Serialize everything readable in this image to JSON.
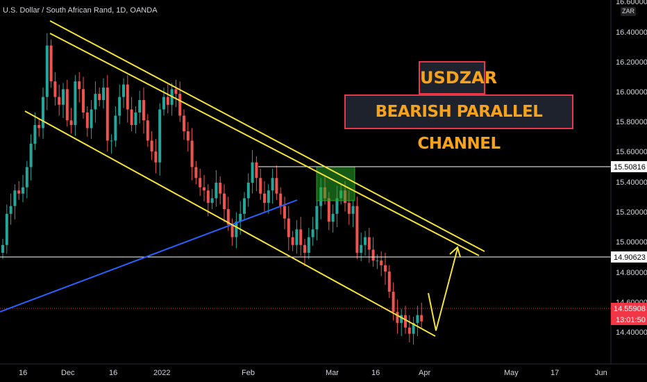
{
  "header": {
    "symbol_title": "U.S. Dollar / South African Rand, 1D, OANDA",
    "currency_badge": "ZAR"
  },
  "annotations": {
    "title": "USDZAR",
    "subtitle": "BEARISH PARALLEL CHANNEL"
  },
  "price_labels": {
    "resistance": "15.50816",
    "support": "14.90623",
    "last_price": "14.55908",
    "countdown": "13:01:50"
  },
  "colors": {
    "background": "#000000",
    "bull_candle": "#26a69a",
    "bear_candle": "#ef5350",
    "channel": "#f5e33b",
    "trendline": "#2962ff",
    "annotation_text": "#f7a21b",
    "annotation_border": "#e8364a",
    "last_price_tag": "#f23645"
  },
  "chart_data": {
    "type": "candlestick",
    "title": "U.S. Dollar / South African Rand, 1D, OANDA",
    "x_tick_labels": [
      "16",
      "Dec",
      "16",
      "2022",
      "Feb",
      "Mar",
      "16",
      "Apr",
      "May",
      "17",
      "Jun"
    ],
    "y_tick_labels": [
      "16.60000",
      "16.40000",
      "16.20000",
      "16.00000",
      "15.80000",
      "15.60000",
      "15.40000",
      "15.20000",
      "15.00000",
      "14.80000",
      "14.60000",
      "14.40000"
    ],
    "ylim": [
      14.3,
      16.6
    ],
    "grid": false,
    "horizontal_levels": [
      15.50816,
      14.90623
    ],
    "last_price": 14.55908,
    "approx_closes": [
      15.05,
      15.25,
      15.3,
      15.4,
      15.38,
      15.42,
      15.55,
      15.7,
      15.82,
      15.8,
      16.0,
      16.33,
      16.1,
      16.0,
      15.95,
      16.05,
      15.85,
      15.82,
      16.1,
      16.05,
      15.9,
      15.8,
      15.92,
      16.02,
      15.98,
      16.06,
      15.72,
      15.72,
      15.88,
      16.0,
      16.08,
      15.92,
      15.82,
      15.9,
      15.98,
      15.85,
      15.72,
      15.65,
      15.58,
      15.92,
      16.0,
      15.95,
      16.05,
      16.02,
      15.88,
      15.78,
      15.72,
      15.55,
      15.48,
      15.42,
      15.4,
      15.32,
      15.35,
      15.45,
      15.38,
      15.28,
      15.18,
      15.1,
      15.2,
      15.25,
      15.35,
      15.45,
      15.58,
      15.48,
      15.38,
      15.32,
      15.4,
      15.48,
      15.38,
      15.3,
      15.22,
      15.1,
      15.05,
      15.15,
      15.05,
      15.0,
      15.1,
      15.15,
      15.3,
      15.42,
      15.35,
      15.2,
      15.25,
      15.35,
      15.4,
      15.32,
      15.25,
      15.3,
      15.0,
      15.05,
      15.1,
      15.02,
      14.95,
      14.95,
      14.92,
      14.88,
      14.75,
      14.62,
      14.55,
      14.6,
      14.52,
      14.48,
      14.55,
      14.6,
      14.56
    ],
    "channel_lines": [
      {
        "name": "upper",
        "start": [
          "Nov 20",
          16.48
        ],
        "end": [
          "Apr 26",
          14.97
        ]
      },
      {
        "name": "upper_inner",
        "start": [
          "Nov 24",
          16.38
        ],
        "end": [
          "Apr 26",
          14.93
        ]
      },
      {
        "name": "lower",
        "start": [
          "Nov 18",
          15.93
        ],
        "end": [
          "Apr 8",
          14.39
        ]
      }
    ],
    "trendline": {
      "start": [
        "Oct 28",
        14.56
      ],
      "end": [
        "Feb 21",
        15.28
      ]
    },
    "projection": "14.40 → 14.98"
  }
}
